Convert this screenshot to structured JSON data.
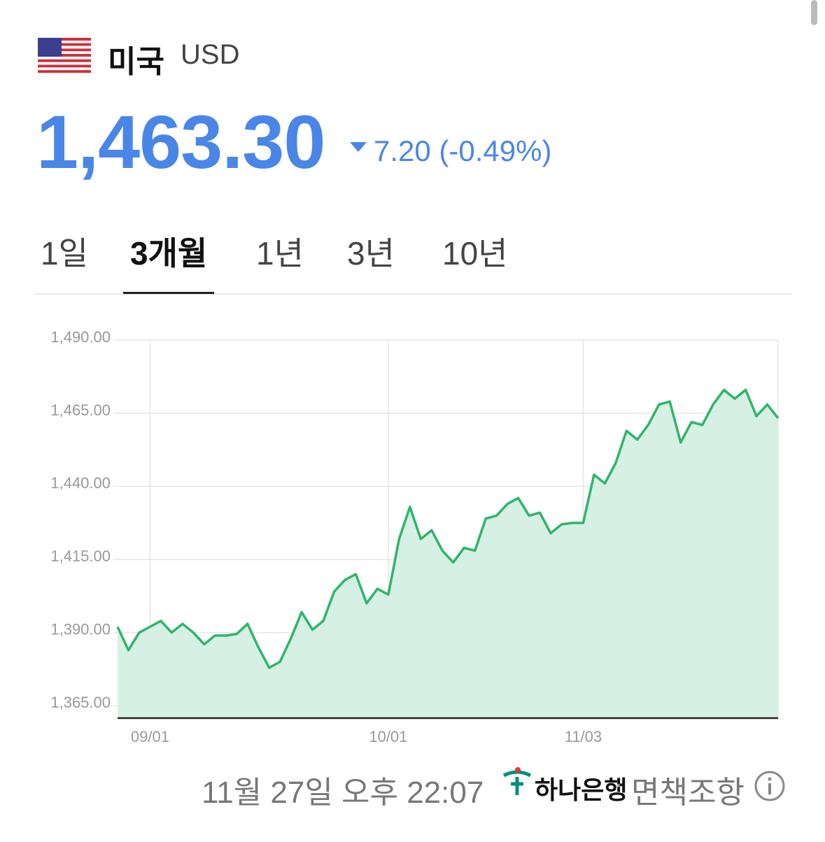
{
  "header": {
    "country": "미국",
    "currency": "USD"
  },
  "price": {
    "value": "1,463.30",
    "change": "7.20 (-0.49%)"
  },
  "tabs": {
    "items": [
      "1일",
      "3개월",
      "1년",
      "3년",
      "10년"
    ],
    "selected": 1
  },
  "chart_data": {
    "type": "area",
    "categories": [
      null,
      null,
      null,
      "09/01",
      null,
      null,
      null,
      null,
      null,
      null,
      null,
      null,
      null,
      null,
      null,
      null,
      null,
      null,
      null,
      null,
      null,
      null,
      null,
      null,
      null,
      "10/01",
      null,
      null,
      null,
      null,
      null,
      null,
      null,
      null,
      null,
      null,
      null,
      null,
      null,
      null,
      null,
      null,
      null,
      "11/03",
      null,
      null,
      null,
      null,
      null,
      null,
      null,
      null,
      null,
      null,
      null,
      null,
      null,
      null,
      null,
      null,
      null,
      null
    ],
    "series": [
      {
        "color": "#2fb56c",
        "fill": "#d6f1e3",
        "values": [
          1392,
          1384,
          1390,
          1392,
          1394,
          1390,
          1393,
          1390,
          1386,
          1389,
          1389,
          1389.5,
          1393,
          1385,
          1378,
          1380,
          1388,
          1397,
          1391,
          1394,
          1404,
          1408,
          1410,
          1400,
          1405,
          1403,
          1422,
          1433,
          1422,
          1425,
          1418,
          1414,
          1419,
          1418,
          1429,
          1430,
          1434,
          1436,
          1430,
          1431,
          1424,
          1427,
          1427.5,
          1427.5,
          1444,
          1441,
          1448,
          1459,
          1456,
          1461,
          1468,
          1469,
          1455,
          1462,
          1461,
          1468,
          1473,
          1470,
          1473,
          1464,
          1468,
          1463.3
        ]
      }
    ],
    "ylim": [
      1361,
      1490
    ],
    "yticks": [
      {
        "value": 1365,
        "label": "1,365.00"
      },
      {
        "value": 1390,
        "label": "1,390.00"
      },
      {
        "value": 1415,
        "label": "1,415.00"
      },
      {
        "value": 1440,
        "label": "1,440.00"
      },
      {
        "value": 1465,
        "label": "1,465.00"
      },
      {
        "value": 1490,
        "label": "1,490.00"
      }
    ],
    "grid": true
  },
  "footer": {
    "timestamp": "11월 27일 오후 22:07",
    "bank": "하나은행",
    "separator": "·",
    "disclaimer": "면책조항"
  }
}
